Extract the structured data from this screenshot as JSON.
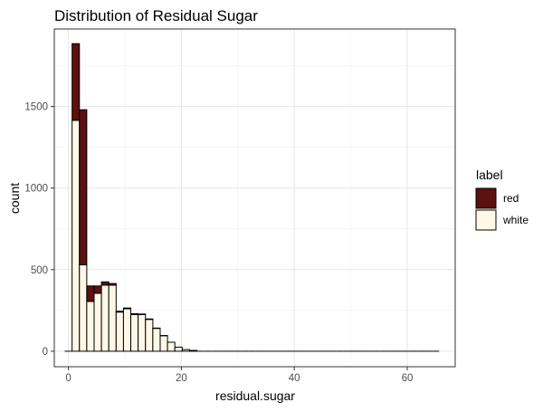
{
  "chart_data": {
    "type": "bar",
    "title": "Distribution of Residual Sugar",
    "xlabel": "residual.sugar",
    "ylabel": "count",
    "xlim": [
      -2.5,
      68.5
    ],
    "ylim": [
      -95,
      1975
    ],
    "x_ticks": [
      0,
      20,
      40,
      60
    ],
    "x_tick_labels": [
      "0",
      "20",
      "40",
      "60"
    ],
    "y_ticks": [
      0,
      500,
      1000,
      1500
    ],
    "y_tick_labels": [
      "0",
      "500",
      "1000",
      "1500"
    ],
    "grid": true,
    "stacked": true,
    "bin_width": 1.3,
    "bin_centers": [
      0.0,
      1.3,
      2.6,
      3.9,
      5.2,
      6.5,
      7.8,
      9.1,
      10.4,
      11.7,
      13.0,
      14.3,
      15.6,
      16.9,
      18.2,
      19.5,
      20.8,
      22.1,
      23.4,
      24.7,
      26.0,
      27.3,
      28.6,
      29.9,
      31.2,
      32.5,
      33.8,
      35.1,
      36.4,
      37.7,
      39.0,
      40.3,
      41.6,
      42.9,
      44.2,
      45.5,
      46.8,
      48.1,
      49.4,
      50.7,
      52.0,
      53.3,
      54.6,
      55.9,
      57.2,
      58.5,
      59.8,
      61.1,
      62.4,
      63.7,
      65.0
    ],
    "legend": {
      "title": "label",
      "position": "right",
      "items": [
        {
          "label": "red",
          "color": "#5c1010"
        },
        {
          "label": "white",
          "color": "#fff8e7"
        }
      ]
    },
    "series": [
      {
        "name": "red",
        "color": "#5c1010",
        "values": [
          0,
          470,
          950,
          95,
          45,
          20,
          10,
          5,
          5,
          5,
          3,
          3,
          2,
          1,
          0,
          0,
          0,
          0,
          0,
          0,
          0,
          0,
          0,
          0,
          0,
          0,
          0,
          0,
          0,
          0,
          0,
          0,
          0,
          0,
          0,
          0,
          0,
          0,
          0,
          0,
          0,
          0,
          0,
          0,
          0,
          0,
          0,
          0,
          0,
          0,
          0
        ]
      },
      {
        "name": "white",
        "color": "#fff8e7",
        "values": [
          0,
          1415,
          530,
          305,
          355,
          405,
          405,
          240,
          260,
          225,
          225,
          195,
          140,
          95,
          55,
          25,
          10,
          5,
          0,
          0,
          0,
          0,
          0,
          0,
          0,
          0,
          0,
          0,
          0,
          0,
          0,
          0,
          0,
          0,
          0,
          0,
          0,
          0,
          0,
          0,
          0,
          0,
          0,
          0,
          0,
          0,
          0,
          0,
          0,
          0,
          0
        ]
      }
    ]
  }
}
